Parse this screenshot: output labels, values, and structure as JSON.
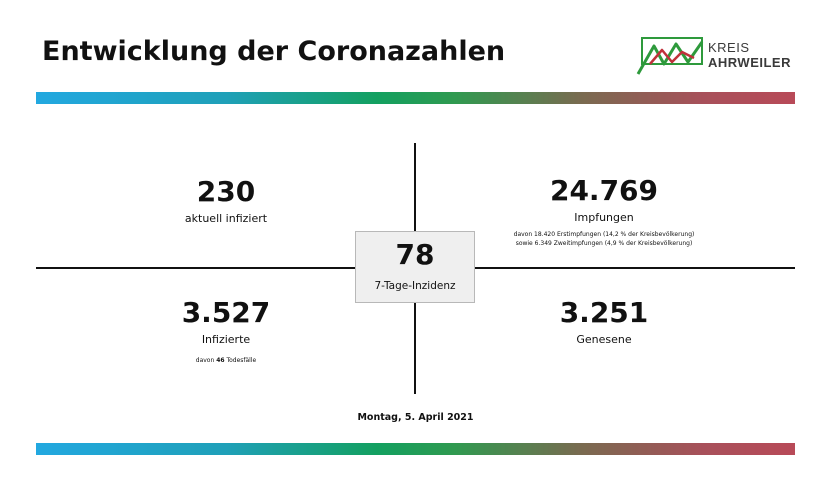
{
  "header": {
    "title": "Entwicklung der Coronazahlen",
    "logo": {
      "line1": "KREIS",
      "line2": "AHRWEILER",
      "icon": "kreis-ahrweiler-logo-icon",
      "colors": {
        "green": "#2e9a3c",
        "red": "#c0313a"
      }
    }
  },
  "band": {
    "colors": [
      "#22a8e0",
      "#13a060",
      "#b84a58"
    ]
  },
  "stats": {
    "aktuell": {
      "value": "230",
      "label": "aktuell infiziert"
    },
    "impfungen": {
      "value": "24.769",
      "label": "Impfungen",
      "note1": "davon 18.420 Erstimpfungen (14,2 % der Kreisbevölkerung)",
      "note2": "sowie 6.349 Zweitimpfungen (4,9 % der Kreisbevölkerung)"
    },
    "inzidenz": {
      "value": "78",
      "label": "7-Tage-Inzidenz"
    },
    "infizierte": {
      "value": "3.527",
      "label": "Infizierte",
      "note_prefix": "davon ",
      "note_count": "46",
      "note_suffix": " Todesfälle"
    },
    "genesene": {
      "value": "3.251",
      "label": "Genesene"
    }
  },
  "footer": {
    "date": "Montag, 5. April 2021"
  }
}
